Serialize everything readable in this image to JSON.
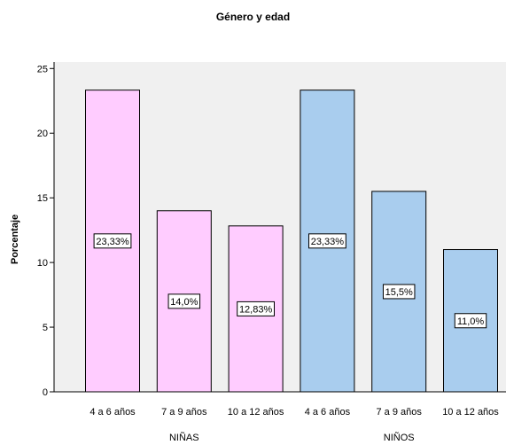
{
  "chart_data": {
    "type": "bar",
    "title": "Género y edad",
    "xlabel": "",
    "ylabel": "Porcentaje",
    "ylim": [
      0,
      25.5
    ],
    "yticks": [
      0,
      5,
      10,
      15,
      20,
      25
    ],
    "grid": false,
    "legend": "none",
    "plot_background": "#f0f0f0",
    "groups": [
      {
        "name": "NIÑAS",
        "color": "#ffccff",
        "categories": [
          "4 a 6 años",
          "7 a 9 años",
          "10 a 12 años"
        ],
        "values": [
          23.33,
          14.0,
          12.83
        ],
        "labels": [
          "23,33%",
          "14,0%",
          "12,83%"
        ]
      },
      {
        "name": "NIÑOS",
        "color": "#a9cdee",
        "categories": [
          "4 a 6 años",
          "7 a 9 años",
          "10 a 12 años"
        ],
        "values": [
          23.33,
          15.5,
          11.0
        ],
        "labels": [
          "23,33%",
          "15,5%",
          "11,0%"
        ]
      }
    ]
  }
}
